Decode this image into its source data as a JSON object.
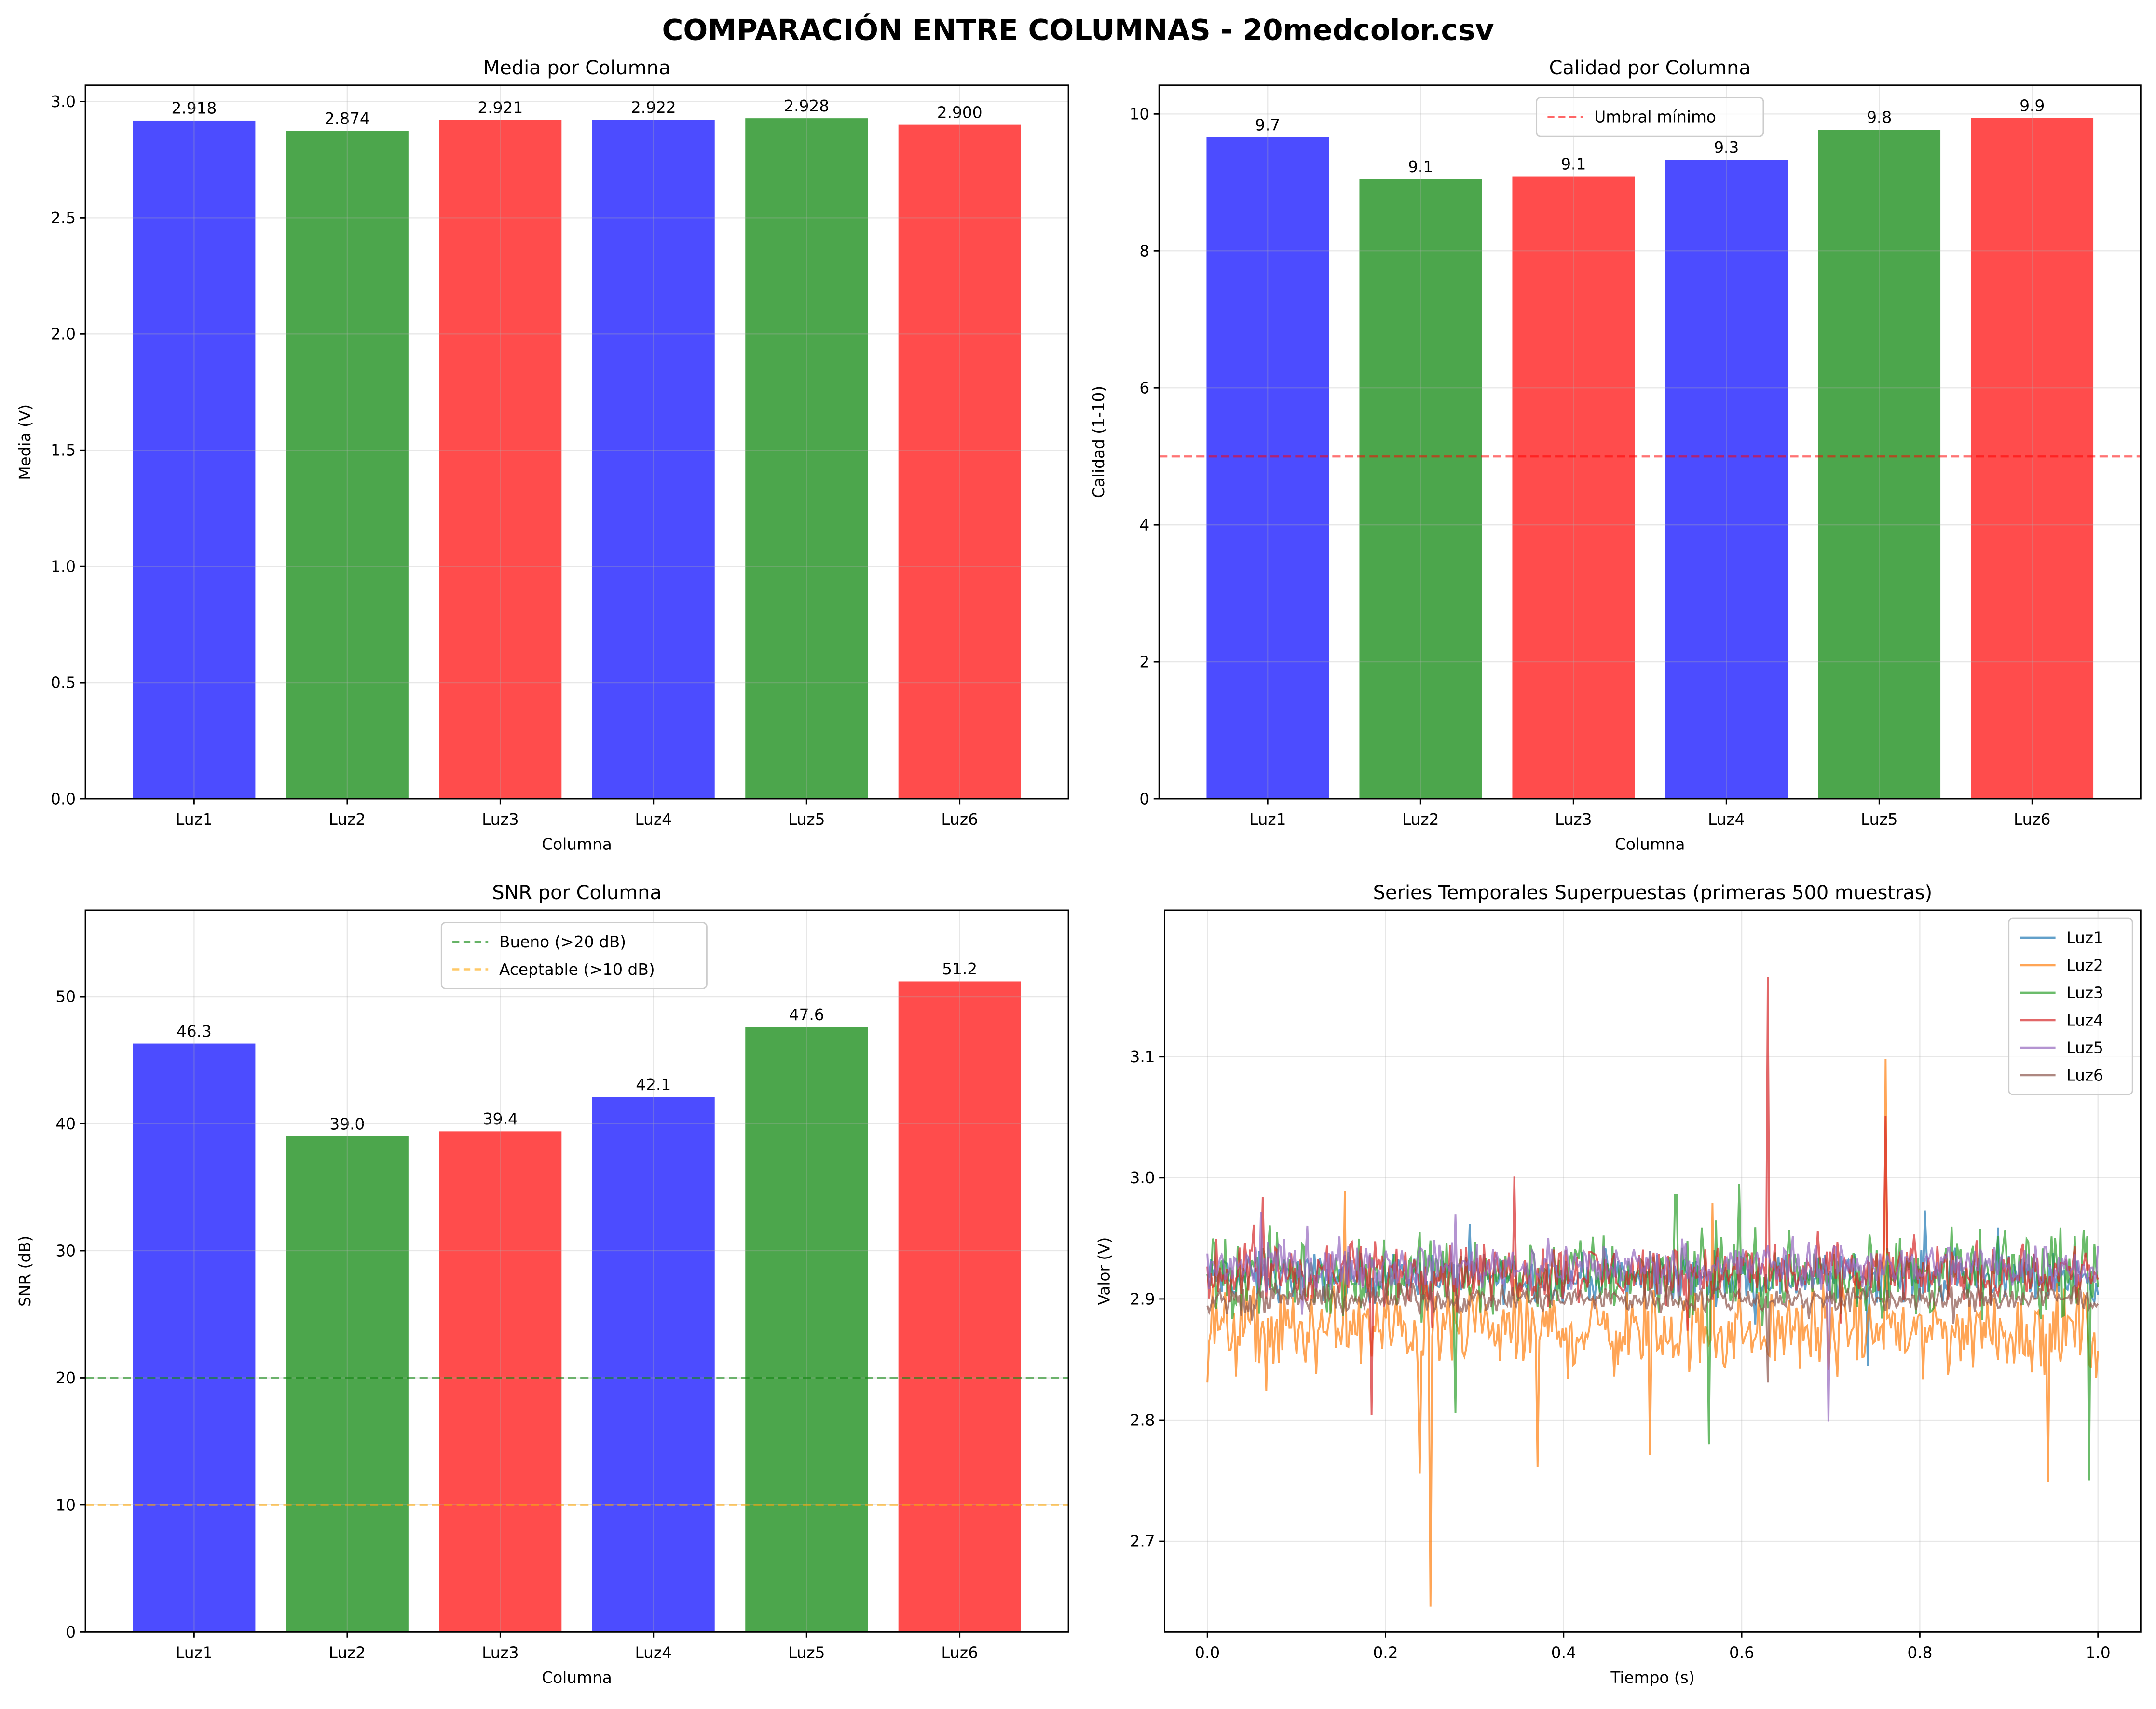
{
  "figure": {
    "suptitle": "COMPARACIÓN ENTRE COLUMNAS - 20medcolor.csv"
  },
  "colors": {
    "blue": "#0000ff",
    "green": "#008000",
    "red": "#ff0000",
    "bar_alpha": 0.7
  },
  "chart_data": [
    {
      "type": "bar",
      "title": "Media por Columna",
      "xlabel": "Columna",
      "ylabel": "Media (V)",
      "categories": [
        "Luz1",
        "Luz2",
        "Luz3",
        "Luz4",
        "Luz5",
        "Luz6"
      ],
      "values": [
        2.918,
        2.874,
        2.921,
        2.922,
        2.928,
        2.9
      ],
      "labels": [
        "2.918",
        "2.874",
        "2.921",
        "2.922",
        "2.928",
        "2.900"
      ],
      "bar_colors": [
        "#0000ff",
        "#008000",
        "#ff0000",
        "#0000ff",
        "#008000",
        "#ff0000"
      ],
      "ylim": [
        0,
        3.07
      ],
      "yticks": [
        "0.0",
        "0.5",
        "1.0",
        "1.5",
        "2.0",
        "2.5",
        "3.0"
      ],
      "grid": true
    },
    {
      "type": "bar",
      "title": "Calidad por Columna",
      "xlabel": "Columna",
      "ylabel": "Calidad (1-10)",
      "categories": [
        "Luz1",
        "Luz2",
        "Luz3",
        "Luz4",
        "Luz5",
        "Luz6"
      ],
      "values": [
        9.66,
        9.05,
        9.09,
        9.33,
        9.77,
        9.94
      ],
      "labels": [
        "9.7",
        "9.1",
        "9.1",
        "9.3",
        "9.8",
        "9.9"
      ],
      "bar_colors": [
        "#0000ff",
        "#008000",
        "#ff0000",
        "#0000ff",
        "#008000",
        "#ff0000"
      ],
      "ylim": [
        0,
        10.42
      ],
      "yticks": [
        "0",
        "2",
        "4",
        "6",
        "8",
        "10"
      ],
      "hlines": [
        {
          "y": 5,
          "name": "Umbral mínimo",
          "color": "#ff0000"
        }
      ],
      "legend": "top-center",
      "grid": true
    },
    {
      "type": "bar",
      "title": "SNR por Columna",
      "xlabel": "Columna",
      "ylabel": "SNR (dB)",
      "categories": [
        "Luz1",
        "Luz2",
        "Luz3",
        "Luz4",
        "Luz5",
        "Luz6"
      ],
      "values": [
        46.3,
        39.0,
        39.4,
        42.1,
        47.6,
        51.2
      ],
      "labels": [
        "46.3",
        "39.0",
        "39.4",
        "42.1",
        "47.6",
        "51.2"
      ],
      "bar_colors": [
        "#0000ff",
        "#008000",
        "#ff0000",
        "#0000ff",
        "#008000",
        "#ff0000"
      ],
      "ylim": [
        0,
        56.8
      ],
      "yticks": [
        "0",
        "10",
        "20",
        "30",
        "40",
        "50"
      ],
      "hlines": [
        {
          "y": 20,
          "name": "Bueno (>20 dB)",
          "color": "#008000"
        },
        {
          "y": 10,
          "name": "Aceptable (>10 dB)",
          "color": "#ffa500"
        }
      ],
      "legend": "top-center",
      "grid": true
    },
    {
      "type": "line",
      "title": "Series Temporales Superpuestas (primeras 500 muestras)",
      "xlabel": "Tiempo (s)",
      "ylabel": "Valor (V)",
      "xlim": [
        -0.048,
        1.048
      ],
      "ylim": [
        2.625,
        3.221
      ],
      "xticks": [
        "0.0",
        "0.2",
        "0.4",
        "0.6",
        "0.8",
        "1.0"
      ],
      "yticks": [
        "2.7",
        "2.8",
        "2.9",
        "3.0",
        "3.1"
      ],
      "legend": "top-right",
      "grid": true,
      "series": [
        {
          "name": "Luz1",
          "color": "#1f77b4",
          "mean": 2.918,
          "spikes": [
            [
              0.742,
              2.845
            ],
            [
              0.806,
              2.973
            ],
            [
              0.887,
              2.959
            ]
          ]
        },
        {
          "name": "Luz2",
          "color": "#ff7f0e",
          "mean": 2.874,
          "spikes": [
            [
              0.0,
              2.831
            ],
            [
              0.154,
              2.989
            ],
            [
              0.238,
              2.756
            ],
            [
              0.25,
              2.646
            ],
            [
              0.37,
              2.761
            ],
            [
              0.497,
              2.771
            ],
            [
              0.568,
              2.979
            ],
            [
              0.762,
              3.098
            ],
            [
              0.944,
              2.749
            ]
          ]
        },
        {
          "name": "Luz3",
          "color": "#2ca02c",
          "mean": 2.921,
          "spikes": [
            [
              0.278,
              2.806
            ],
            [
              0.526,
              2.986
            ],
            [
              0.563,
              2.78
            ],
            [
              0.598,
              2.995
            ],
            [
              0.99,
              2.75
            ]
          ]
        },
        {
          "name": "Luz4",
          "color": "#d62728",
          "mean": 2.922,
          "spikes": [
            [
              0.062,
              2.984
            ],
            [
              0.184,
              2.804
            ],
            [
              0.344,
              3.001
            ],
            [
              0.63,
              3.166
            ],
            [
              0.762,
              3.051
            ]
          ]
        },
        {
          "name": "Luz5",
          "color": "#9467bd",
          "mean": 2.928,
          "spikes": [
            [
              0.06,
              2.972
            ],
            [
              0.278,
              2.97
            ],
            [
              0.697,
              2.799
            ]
          ]
        },
        {
          "name": "Luz6",
          "color": "#8c564b",
          "mean": 2.9,
          "spikes": [
            [
              0.63,
              2.831
            ]
          ]
        }
      ]
    }
  ]
}
